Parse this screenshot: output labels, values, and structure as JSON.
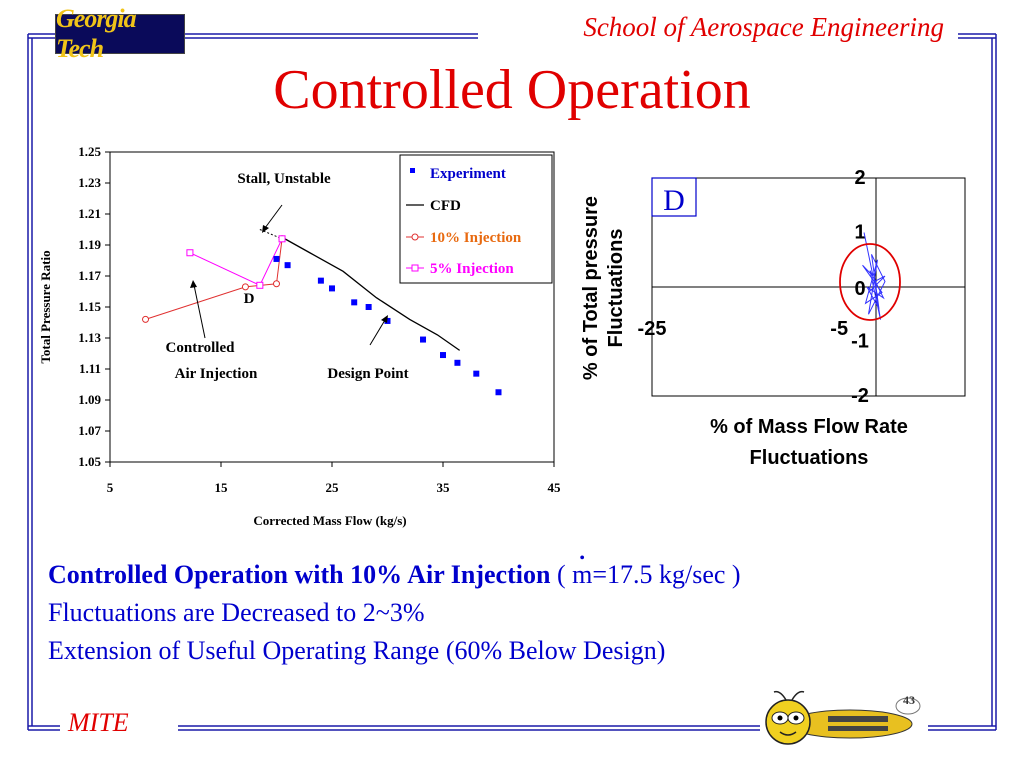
{
  "header": {
    "logo_text": "Georgia Tech",
    "school": "School of Aerospace Engineering",
    "title": "Controlled Operation"
  },
  "colors": {
    "frame": "#1a1aa8",
    "title": "#e00000",
    "text": "#0000cc",
    "experiment": "#0000ff",
    "cfd": "#000000",
    "inj10": "#e03030",
    "inj5": "#ff00ff",
    "circle": "#e00000",
    "fluct": "#3333ff"
  },
  "chart_data": [
    {
      "type": "scatter",
      "xlabel": "Corrected Mass Flow (kg/s)",
      "ylabel": "Total Pressure Ratio",
      "xlim": [
        5,
        45
      ],
      "ylim": [
        1.05,
        1.25
      ],
      "xticks": [
        "5",
        "15",
        "25",
        "35",
        "45"
      ],
      "yticks": [
        "1.05",
        "1.07",
        "1.09",
        "1.11",
        "1.13",
        "1.15",
        "1.17",
        "1.19",
        "1.21",
        "1.23",
        "1.25"
      ],
      "legend": "top-right",
      "series": [
        {
          "name": "Experiment",
          "style": "markers",
          "x": [
            20,
            21,
            24,
            25,
            27,
            28.3,
            30,
            33.2,
            35,
            36.3,
            38,
            40
          ],
          "y": [
            1.181,
            1.177,
            1.167,
            1.162,
            1.153,
            1.15,
            1.141,
            1.129,
            1.119,
            1.114,
            1.107,
            1.095
          ]
        },
        {
          "name": "CFD",
          "style": "line",
          "x": [
            20.5,
            23,
            26,
            29,
            32,
            34.5,
            36.5
          ],
          "y": [
            1.195,
            1.185,
            1.173,
            1.156,
            1.142,
            1.132,
            1.122
          ]
        },
        {
          "name": "10% Injection",
          "style": "line-open-circle",
          "x": [
            8.2,
            17.2,
            20,
            20.5
          ],
          "y": [
            1.142,
            1.163,
            1.165,
            1.194
          ]
        },
        {
          "name": "5% Injection",
          "style": "line-open-square",
          "x": [
            12.2,
            18.5,
            20.5
          ],
          "y": [
            1.185,
            1.164,
            1.194
          ]
        }
      ],
      "annotations": [
        {
          "text": "Stall, Unstable"
        },
        {
          "text": "D"
        },
        {
          "text": "Controlled"
        },
        {
          "text": "Air Injection"
        },
        {
          "text": "Design Point"
        }
      ]
    },
    {
      "type": "line",
      "label_box": "D",
      "xlabel_line1": "% of Mass Flow Rate",
      "xlabel_line2": "Fluctuations",
      "ylabel_line1": "% of Total pressure",
      "ylabel_line2": "Fluctuations",
      "xlim": [
        -25,
        0
      ],
      "ylim": [
        -2,
        2
      ],
      "xticks": [
        "-25",
        "-5"
      ],
      "yticks": [
        "2",
        "1",
        "0",
        "-1",
        "-2"
      ],
      "series": [
        {
          "name": "fluctuations",
          "x": [
            -0.8,
            -0.2,
            -0.9,
            0.4,
            -0.7,
            0.1,
            -0.5,
            0.6,
            -0.3,
            0.2,
            -0.6,
            0.5,
            -0.4,
            0.3,
            -0.1,
            0.6,
            -0.5
          ],
          "y": [
            1.0,
            0.2,
            0.4,
            -0.1,
            -0.3,
            0.5,
            -0.5,
            0.1,
            0.6,
            -0.4,
            0.0,
            -0.2,
            0.3,
            -0.6,
            0.1,
            0.2,
            -0.1
          ]
        }
      ]
    }
  ],
  "bullets": {
    "line1_bold": "Controlled Operation with 10% Air Injection",
    "line1_paren_open": "(",
    "line1_m": "m",
    "line1_value": "=17.5 kg/sec )",
    "line2": "Fluctuations are Decreased to 2~3%",
    "line3": "Extension of Useful Operating Range (60% Below Design)"
  },
  "footer": {
    "mite": "MITE",
    "mascot": "yellow-jacket-mascot"
  }
}
